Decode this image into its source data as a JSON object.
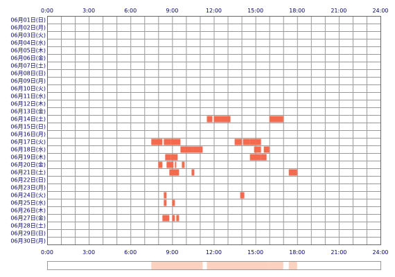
{
  "chart_data": {
    "type": "timeline-heatmap",
    "x_ticks": [
      "0:00",
      "3:00",
      "6:00",
      "9:00",
      "12:00",
      "15:00",
      "18:00",
      "21:00",
      "24:00"
    ],
    "x_range_hours": [
      0,
      24
    ],
    "grid": true,
    "bar_color": "#f46a4e",
    "grid_color": "#999999",
    "strip_color": "#fbd2bf",
    "rows": [
      {
        "label": "06月01日(日)",
        "segments": []
      },
      {
        "label": "06月02日(月)",
        "segments": []
      },
      {
        "label": "06月03日(火)",
        "segments": []
      },
      {
        "label": "06月04日(水)",
        "segments": []
      },
      {
        "label": "06月05日(木)",
        "segments": []
      },
      {
        "label": "06月06日(金)",
        "segments": []
      },
      {
        "label": "06月07日(土)",
        "segments": []
      },
      {
        "label": "06月08日(日)",
        "segments": []
      },
      {
        "label": "06月09日(月)",
        "segments": []
      },
      {
        "label": "06月10日(火)",
        "segments": []
      },
      {
        "label": "06月11日(水)",
        "segments": []
      },
      {
        "label": "06月12日(木)",
        "segments": []
      },
      {
        "label": "06月13日(金)",
        "segments": []
      },
      {
        "label": "06月14日(土)",
        "segments": [
          [
            11.5,
            11.9
          ],
          [
            12.0,
            12.5
          ],
          [
            12.5,
            13.2
          ],
          [
            16.0,
            17.0
          ]
        ]
      },
      {
        "label": "06月15日(日)",
        "segments": []
      },
      {
        "label": "06月16日(月)",
        "segments": []
      },
      {
        "label": "06月17日(火)",
        "segments": [
          [
            7.5,
            8.3
          ],
          [
            8.4,
            8.9
          ],
          [
            8.9,
            9.6
          ],
          [
            13.5,
            14.0
          ],
          [
            14.1,
            14.6
          ],
          [
            14.6,
            15.0
          ],
          [
            15.0,
            15.4
          ]
        ]
      },
      {
        "label": "06月18日(水)",
        "segments": [
          [
            9.6,
            10.5
          ],
          [
            10.5,
            11.2
          ],
          [
            14.9,
            15.4
          ],
          [
            15.6,
            16.0
          ]
        ]
      },
      {
        "label": "06月19日(木)",
        "segments": [
          [
            8.5,
            8.9
          ],
          [
            8.9,
            9.4
          ],
          [
            14.6,
            15.4
          ],
          [
            15.4,
            15.8
          ]
        ]
      },
      {
        "label": "06月20日(金)",
        "segments": [
          [
            8.0,
            8.3
          ],
          [
            8.6,
            9.1
          ],
          [
            9.2,
            9.3
          ],
          [
            9.7,
            9.9
          ]
        ]
      },
      {
        "label": "06月21日(土)",
        "segments": [
          [
            8.8,
            9.5
          ],
          [
            10.4,
            10.6
          ],
          [
            17.4,
            18.0
          ]
        ]
      },
      {
        "label": "06月22日(日)",
        "segments": []
      },
      {
        "label": "06月23日(月)",
        "segments": []
      },
      {
        "label": "06月24日(火)",
        "segments": [
          [
            8.4,
            8.6
          ],
          [
            13.9,
            14.2
          ]
        ]
      },
      {
        "label": "06月25日(水)",
        "segments": [
          [
            8.4,
            8.6
          ],
          [
            9.0,
            9.2
          ]
        ]
      },
      {
        "label": "06月26日(木)",
        "segments": []
      },
      {
        "label": "06月27日(金)",
        "segments": [
          [
            8.3,
            8.8
          ],
          [
            9.0,
            9.2
          ],
          [
            9.3,
            9.5
          ]
        ]
      },
      {
        "label": "06月28日(土)",
        "segments": []
      },
      {
        "label": "06月29日(日)",
        "segments": []
      },
      {
        "label": "06月30日(月)",
        "segments": []
      }
    ],
    "summary_strip": [
      [
        7.5,
        11.2
      ],
      [
        11.5,
        16.0
      ],
      [
        16.0,
        17.0
      ],
      [
        17.4,
        18.0
      ]
    ]
  }
}
